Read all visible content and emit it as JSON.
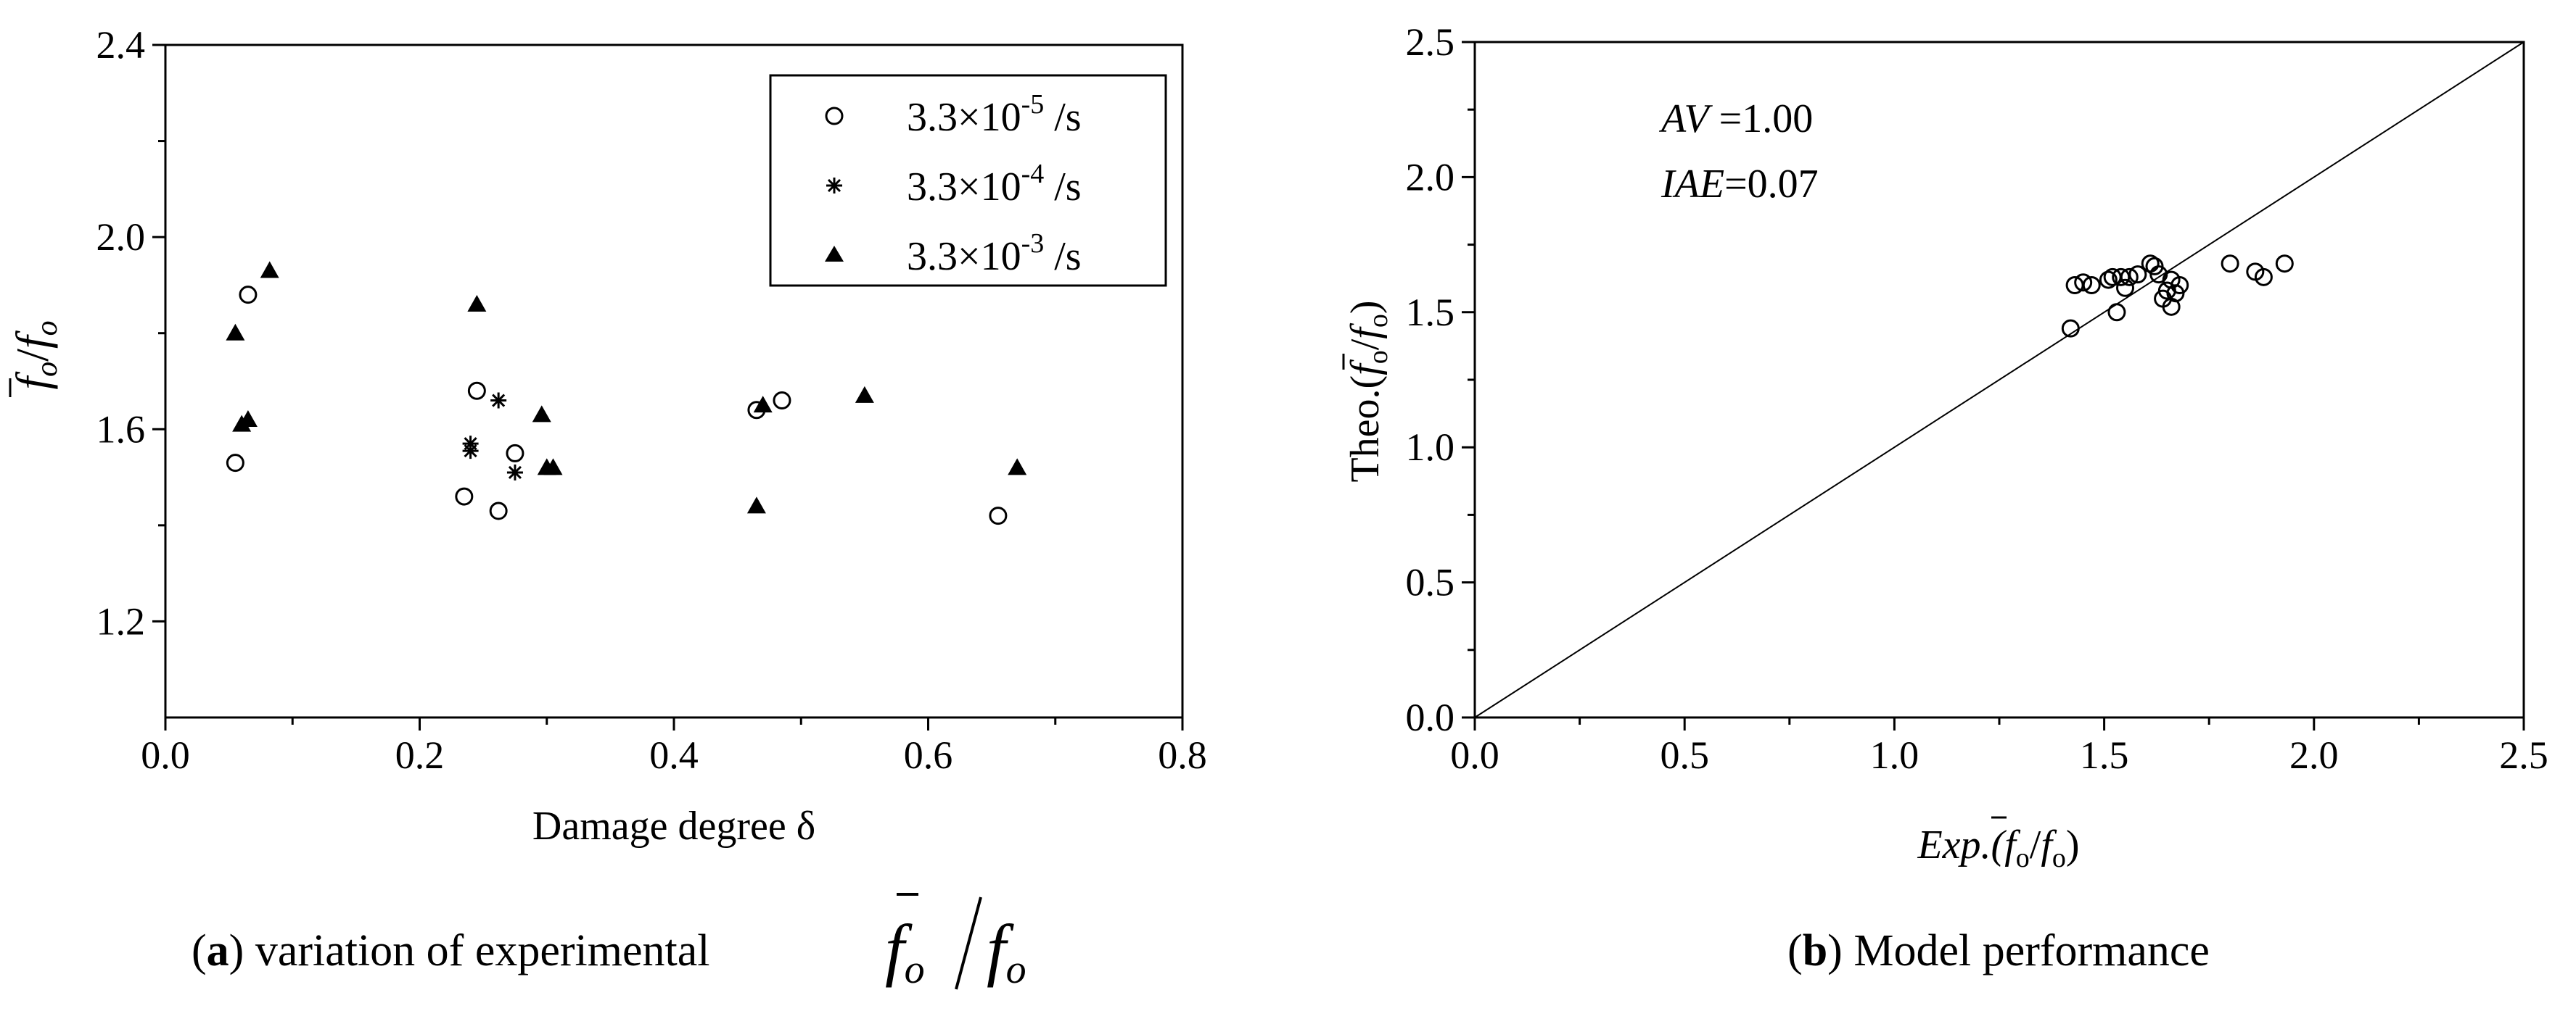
{
  "chart_data": [
    {
      "type": "scatter",
      "caption": {
        "letter": "a",
        "text": " variation of experimental"
      },
      "xlabel": "Damage degree δ",
      "ylabel": {
        "num": "f",
        "sub": "o",
        "den": "f",
        "den_sub": "o"
      },
      "xlim": [
        0.0,
        0.8
      ],
      "ylim": [
        1.0,
        2.4
      ],
      "xticks": [
        "0.0",
        "0.2",
        "0.4",
        "0.6",
        "0.8"
      ],
      "yticks": [
        "1.2",
        "1.6",
        "2.0",
        "2.4"
      ],
      "legend_position": "top-right",
      "series": [
        {
          "name": {
            "base": "3.3×10",
            "exp": "-5",
            "unit": " /s"
          },
          "marker": "circle",
          "points": [
            [
              0.055,
              1.53
            ],
            [
              0.065,
              1.88
            ],
            [
              0.235,
              1.46
            ],
            [
              0.245,
              1.68
            ],
            [
              0.262,
              1.43
            ],
            [
              0.275,
              1.55
            ],
            [
              0.465,
              1.64
            ],
            [
              0.485,
              1.66
            ],
            [
              0.655,
              1.42
            ]
          ]
        },
        {
          "name": {
            "base": "3.3×10",
            "exp": "-4",
            "unit": " /s"
          },
          "marker": "asterisk",
          "points": [
            [
              0.24,
              1.57
            ],
            [
              0.24,
              1.555
            ],
            [
              0.262,
              1.66
            ],
            [
              0.275,
              1.51
            ]
          ]
        },
        {
          "name": {
            "base": "3.3×10",
            "exp": "-3",
            "unit": " /s"
          },
          "marker": "triangle",
          "points": [
            [
              0.055,
              1.8
            ],
            [
              0.06,
              1.61
            ],
            [
              0.065,
              1.62
            ],
            [
              0.082,
              1.93
            ],
            [
              0.245,
              1.86
            ],
            [
              0.296,
              1.63
            ],
            [
              0.3,
              1.52
            ],
            [
              0.305,
              1.52
            ],
            [
              0.465,
              1.44
            ],
            [
              0.47,
              1.65
            ],
            [
              0.55,
              1.67
            ],
            [
              0.67,
              1.52
            ]
          ]
        }
      ]
    },
    {
      "type": "scatter",
      "caption": {
        "letter": "b",
        "text": " Model performance"
      },
      "xlabel": {
        "main": "Exp.(",
        "num": "f",
        "sub": "o",
        "den": "f",
        "den_sub": "o",
        "end": ")"
      },
      "ylabel": {
        "main": "Theo.(",
        "num": "f",
        "sub": "o",
        "den": "f",
        "den_sub": "o",
        "end": ")"
      },
      "xlim": [
        0.0,
        2.5
      ],
      "ylim": [
        0.0,
        2.5
      ],
      "xticks": [
        "0.0",
        "0.5",
        "1.0",
        "1.5",
        "2.0",
        "2.5"
      ],
      "yticks": [
        "0.0",
        "0.5",
        "1.0",
        "1.5",
        "2.0",
        "2.5"
      ],
      "annotations": [
        {
          "name": "AV",
          "value": " =1.00"
        },
        {
          "name": "IAE",
          "value": "=0.07"
        }
      ],
      "reference_line": [
        [
          0.0,
          0.0
        ],
        [
          2.5,
          2.5
        ]
      ],
      "series": [
        {
          "marker": "circle",
          "points": [
            [
              1.42,
              1.44
            ],
            [
              1.43,
              1.6
            ],
            [
              1.45,
              1.61
            ],
            [
              1.47,
              1.6
            ],
            [
              1.51,
              1.62
            ],
            [
              1.52,
              1.63
            ],
            [
              1.53,
              1.5
            ],
            [
              1.54,
              1.63
            ],
            [
              1.55,
              1.59
            ],
            [
              1.56,
              1.63
            ],
            [
              1.58,
              1.64
            ],
            [
              1.61,
              1.68
            ],
            [
              1.62,
              1.67
            ],
            [
              1.63,
              1.64
            ],
            [
              1.64,
              1.55
            ],
            [
              1.65,
              1.58
            ],
            [
              1.66,
              1.62
            ],
            [
              1.66,
              1.52
            ],
            [
              1.67,
              1.57
            ],
            [
              1.68,
              1.6
            ],
            [
              1.8,
              1.68
            ],
            [
              1.86,
              1.65
            ],
            [
              1.88,
              1.63
            ],
            [
              1.93,
              1.68
            ]
          ]
        }
      ]
    }
  ]
}
